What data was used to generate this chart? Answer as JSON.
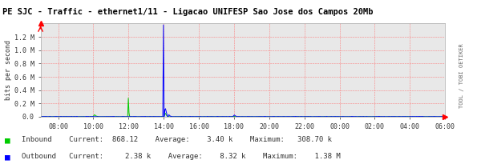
{
  "title": "PE SJC - Traffic - ethernet1/11 - Ligacao UNIFESP Sao Jose dos Campos 20Mb",
  "ylabel": "bits per second",
  "bg_color": "#ffffff",
  "plot_bg_color": "#e8e8e8",
  "grid_color": "#ff6666",
  "axis_color": "#333333",
  "title_color": "#000000",
  "title_bg": "#c8c8c8",
  "inbound_color": "#00cc00",
  "outbound_color": "#0000ff",
  "x_tick_labels": [
    "08:00",
    "10:00",
    "12:00",
    "14:00",
    "16:00",
    "18:00",
    "20:00",
    "22:00",
    "00:00",
    "02:00",
    "04:00",
    "06:00"
  ],
  "y_tick_labels": [
    "0.0",
    "0.2 M",
    "0.4 M",
    "0.6 M",
    "0.8 M",
    "1.0 M",
    "1.2 M"
  ],
  "y_max": 1400000.0,
  "y_min": 0,
  "legend_inbound": "Inbound",
  "legend_outbound": "Outbound",
  "current_in": "868.12",
  "avg_in": "3.40 k",
  "max_in": "308.70 k",
  "current_out": "2.38 k",
  "avg_out": "8.32 k",
  "max_out": "1.38 M",
  "watermark": "TOOL / TOBI OETIKER"
}
